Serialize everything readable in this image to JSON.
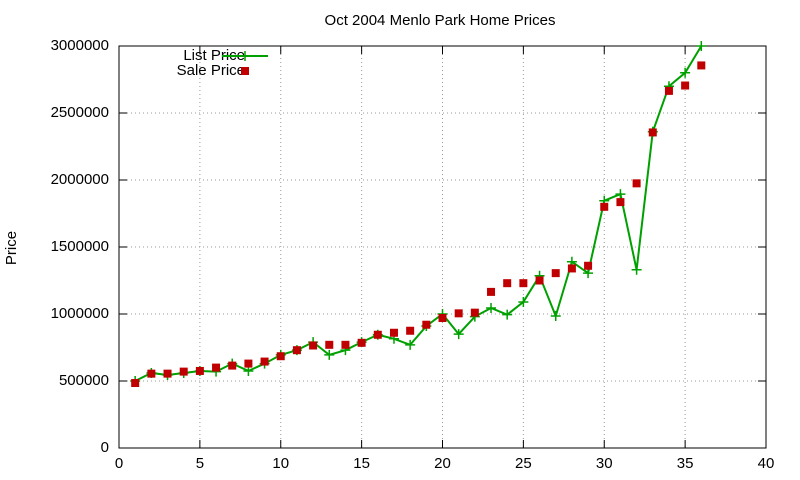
{
  "chart_data": {
    "type": "line",
    "title": "Oct 2004 Menlo Park Home Prices",
    "ylabel": "Price",
    "x": [
      1,
      2,
      3,
      4,
      5,
      6,
      7,
      8,
      9,
      10,
      11,
      12,
      13,
      14,
      15,
      16,
      17,
      18,
      19,
      20,
      21,
      22,
      23,
      24,
      25,
      26,
      27,
      28,
      29,
      30,
      31,
      32,
      33,
      34,
      35,
      36
    ],
    "series": [
      {
        "name": "List Price",
        "color": "#00a000",
        "style": "linespoints",
        "values": [
          500000,
          560000,
          545000,
          560000,
          575000,
          570000,
          630000,
          575000,
          630000,
          695000,
          730000,
          790000,
          695000,
          730000,
          790000,
          845000,
          815000,
          770000,
          910000,
          1000000,
          850000,
          980000,
          1045000,
          995000,
          1090000,
          1285000,
          985000,
          1390000,
          1305000,
          1845000,
          1895000,
          1330000,
          2360000,
          2700000,
          2800000,
          3000000
        ]
      },
      {
        "name": "Sale Price",
        "color": "#c00000",
        "style": "points",
        "values": [
          485000,
          555000,
          555000,
          570000,
          575000,
          600000,
          615000,
          630000,
          645000,
          685000,
          730000,
          765000,
          770000,
          770000,
          785000,
          845000,
          860000,
          875000,
          920000,
          970000,
          1005000,
          1010000,
          1165000,
          1230000,
          1230000,
          1250000,
          1305000,
          1340000,
          1360000,
          1800000,
          1835000,
          1975000,
          2355000,
          2665000,
          2705000,
          2855000
        ]
      }
    ],
    "xlim": [
      0,
      40
    ],
    "xticks": [
      0,
      5,
      10,
      15,
      20,
      25,
      30,
      35,
      40
    ],
    "ylim": [
      0,
      3000000
    ],
    "yticks": [
      0,
      500000,
      1000000,
      1500000,
      2000000,
      2500000,
      3000000
    ],
    "grid": true,
    "legend": "top-left"
  }
}
